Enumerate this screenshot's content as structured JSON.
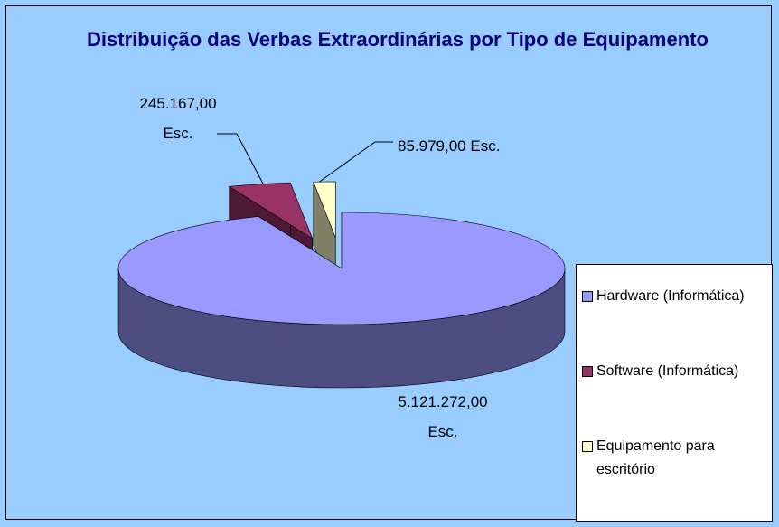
{
  "chart_data": {
    "type": "pie3d",
    "title": "Distribuição das Verbas Extraordinárias por Tipo de Equipamento",
    "categories": [
      "Hardware (Informática)",
      "Software (Informática)",
      "Equipamento para escritório"
    ],
    "values": [
      5121272,
      245167,
      85979
    ],
    "value_labels": [
      "5.121.272,00 Esc.",
      "245.167,00 Esc.",
      "85.979,00 Esc."
    ],
    "colors": [
      "#9999ff",
      "#993366",
      "#ffffcc"
    ],
    "legend": "right"
  }
}
